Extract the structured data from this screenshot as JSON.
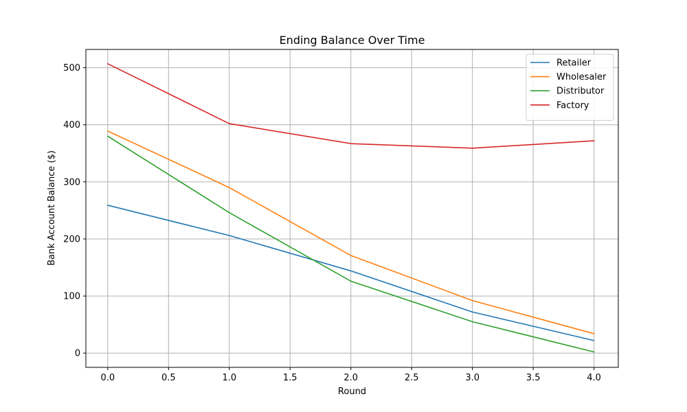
{
  "chart_data": {
    "type": "line",
    "title": "Ending Balance Over Time",
    "xlabel": "Round",
    "ylabel": "Bank Account Balance ($)",
    "x": [
      0,
      1,
      2,
      3,
      4
    ],
    "xlim": [
      -0.18,
      4.2
    ],
    "ylim": [
      -25,
      532
    ],
    "xticks": [
      0,
      0.5,
      1,
      1.5,
      2,
      2.5,
      3,
      3.5,
      4
    ],
    "xtick_labels": [
      "0.0",
      "0.5",
      "1.0",
      "1.5",
      "2.0",
      "2.5",
      "3.0",
      "3.5",
      "4.0"
    ],
    "yticks": [
      0,
      100,
      200,
      300,
      400,
      500
    ],
    "ytick_labels": [
      "0",
      "100",
      "200",
      "300",
      "400",
      "500"
    ],
    "grid": true,
    "legend_position": "top-right",
    "series": [
      {
        "name": "Retailer",
        "color": "#1f77b4",
        "values": [
          259,
          206,
          144,
          72,
          22
        ]
      },
      {
        "name": "Wholesaler",
        "color": "#ff7f0e",
        "values": [
          389,
          290,
          171,
          92,
          34
        ]
      },
      {
        "name": "Distributor",
        "color": "#2ca02c",
        "values": [
          380,
          246,
          126,
          55,
          2
        ]
      },
      {
        "name": "Factory",
        "color": "#d62728",
        "values": [
          507,
          402,
          367,
          359,
          372
        ]
      }
    ]
  }
}
